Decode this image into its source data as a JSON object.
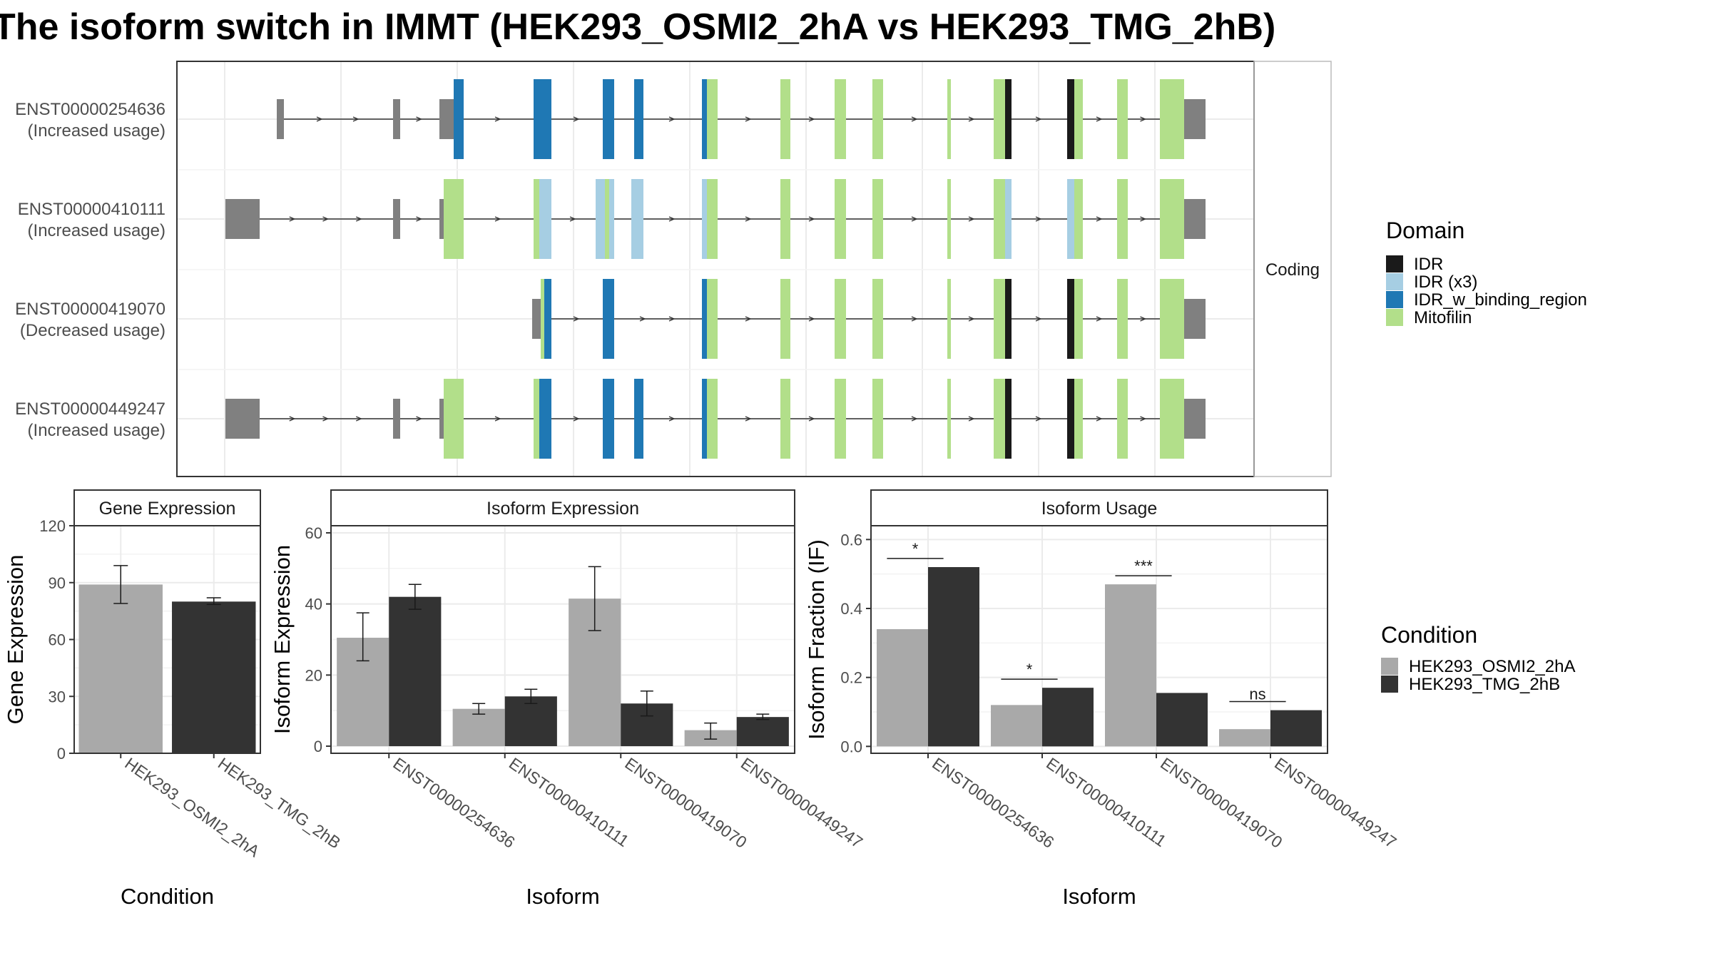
{
  "title": "The isoform switch in IMMT (HEK293_OSMI2_2hA vs HEK293_TMG_2hB)",
  "colors": {
    "IDR": "#1a1a1a",
    "IDR (x3)": "#a6cee3",
    "IDR_w_binding_region": "#1f78b4",
    "Mitofilin": "#b2df8a",
    "noncoding": "#808080",
    "HEK293_OSMI2_2hA": "#a9a9a9",
    "HEK293_TMG_2hB": "#333333"
  },
  "chart_data": [
    {
      "type": "isoform-structure",
      "facet_label": "Coding",
      "transcripts": [
        {
          "id": "ENST00000254636",
          "label": "ENST00000254636",
          "usage": "(Increased usage)"
        },
        {
          "id": "ENST00000410111",
          "label": "ENST00000410111",
          "usage": "(Increased usage)"
        },
        {
          "id": "ENST00000419070",
          "label": "ENST00000419070",
          "usage": "(Decreased usage)"
        },
        {
          "id": "ENST00000449247",
          "label": "ENST00000449247",
          "usage": "(Increased usage)"
        }
      ],
      "legend": {
        "title": "Domain",
        "items": [
          "IDR",
          "IDR (x3)",
          "IDR_w_binding_region",
          "Mitofilin"
        ]
      },
      "grid": true
    },
    {
      "type": "bar",
      "panel_title": "Gene Expression",
      "xlabel": "Condition",
      "ylabel": "Gene Expression",
      "categories": [
        "HEK293_OSMI2_2hA",
        "HEK293_TMG_2hB"
      ],
      "values": [
        89,
        80
      ],
      "errors": [
        [
          79,
          99
        ],
        [
          78.5,
          82
        ]
      ],
      "ylim": [
        0,
        120
      ],
      "yticks": [
        "0",
        "30",
        "60",
        "90",
        "120"
      ],
      "grid": true
    },
    {
      "type": "bar",
      "panel_title": "Isoform Expression",
      "xlabel": "Isoform",
      "ylabel": "Isoform Expression",
      "categories": [
        "ENST00000254636",
        "ENST00000410111",
        "ENST00000419070",
        "ENST00000449247"
      ],
      "series": [
        {
          "name": "HEK293_OSMI2_2hA",
          "values": [
            30.5,
            10.5,
            41.5,
            4.5
          ],
          "errors": [
            [
              24,
              37.5
            ],
            [
              9,
              12
            ],
            [
              32.5,
              50.5
            ],
            [
              2,
              6.5
            ]
          ]
        },
        {
          "name": "HEK293_TMG_2hB",
          "values": [
            42,
            14,
            12,
            8.2
          ],
          "errors": [
            [
              38.5,
              45.5
            ],
            [
              12,
              16
            ],
            [
              8.5,
              15.5
            ],
            [
              7.5,
              9
            ]
          ]
        }
      ],
      "ylim": [
        -2,
        62
      ],
      "yticks": [
        "0",
        "20",
        "40",
        "60"
      ],
      "grid": true
    },
    {
      "type": "bar",
      "panel_title": "Isoform Usage",
      "xlabel": "Isoform",
      "ylabel": "Isoform Fraction (IF)",
      "categories": [
        "ENST00000254636",
        "ENST00000410111",
        "ENST00000419070",
        "ENST00000449247"
      ],
      "series": [
        {
          "name": "HEK293_OSMI2_2hA",
          "values": [
            0.34,
            0.12,
            0.47,
            0.05
          ]
        },
        {
          "name": "HEK293_TMG_2hB",
          "values": [
            0.52,
            0.17,
            0.155,
            0.105
          ]
        }
      ],
      "significance": [
        "*",
        "*",
        "***",
        "ns"
      ],
      "ylim": [
        -0.02,
        0.64
      ],
      "yticks": [
        "0.0",
        "0.2",
        "0.4",
        "0.6"
      ],
      "grid": true
    }
  ],
  "condition_legend": {
    "title": "Condition",
    "items": [
      "HEK293_OSMI2_2hA",
      "HEK293_TMG_2hB"
    ]
  }
}
